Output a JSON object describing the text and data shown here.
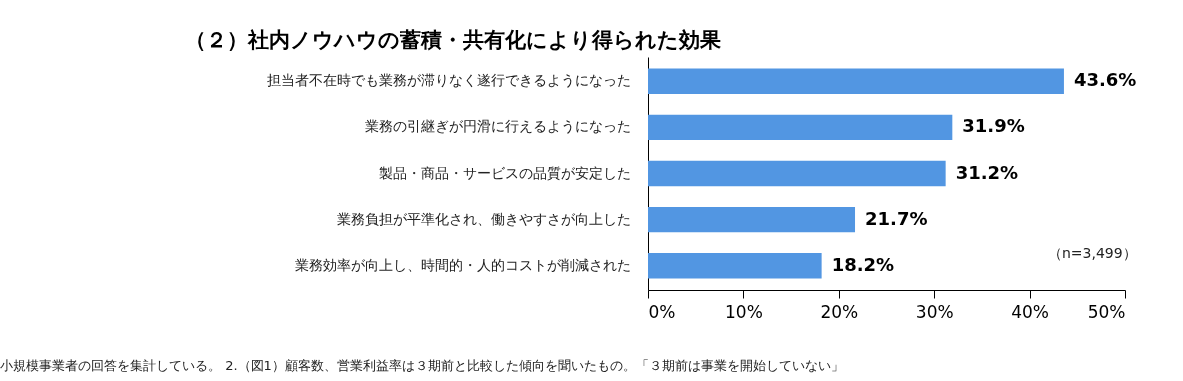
{
  "chart_data": {
    "type": "bar",
    "orientation": "horizontal",
    "title": "（２）社内ノウハウの蓄積・共有化により得られた効果",
    "categories": [
      "担当者不在時でも業務が滞りなく遂行できるようになった",
      "業務の引継ぎが円滑に行えるようになった",
      "製品・商品・サービスの品質が安定した",
      "業務負担が平準化され、働きやすさが向上した",
      "業務効率が向上し、時間的・人的コストが削減された"
    ],
    "values": [
      43.6,
      31.9,
      31.2,
      21.7,
      18.2
    ],
    "value_labels": [
      "43.6%",
      "31.9%",
      "31.2%",
      "21.7%",
      "18.2%"
    ],
    "color": "#5296e2",
    "xlim": [
      0,
      50
    ],
    "xticks": [
      {
        "value": 0,
        "label": "0%"
      },
      {
        "value": 10,
        "label": "10%"
      },
      {
        "value": 20,
        "label": "20%"
      },
      {
        "value": 30,
        "label": "30%"
      },
      {
        "value": 40,
        "label": "40%"
      },
      {
        "value": 50,
        "label": "50%"
      }
    ],
    "grid": false,
    "annotations": [
      "（n=3,499）",
      "小規模事業者の回答を集計している。 2.（図1）顧客数、営業利益率は３期前と比較した傾向を聞いたもの。「３期前は事業を開始していない」"
    ]
  }
}
